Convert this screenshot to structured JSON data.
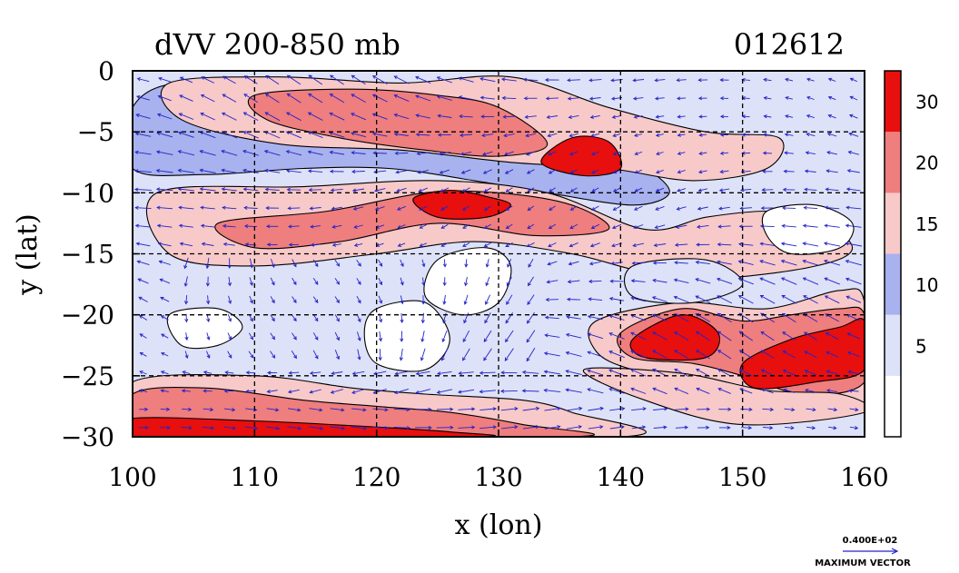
{
  "chart_data": {
    "type": "heatmap",
    "title": "dVV 200-850 mb",
    "date_label": "012612",
    "xlabel": "x (lon)",
    "ylabel": "y (lat)",
    "xlim": [
      100,
      160
    ],
    "ylim": [
      -30,
      0
    ],
    "x_ticks": [
      100,
      110,
      120,
      130,
      140,
      150,
      160
    ],
    "y_ticks": [
      0,
      -5,
      -10,
      -15,
      -20,
      -25,
      -30
    ],
    "grid": true,
    "colorbar": {
      "placement": "right",
      "levels": [
        0,
        5,
        10,
        15,
        20,
        30,
        40
      ],
      "tick_labels": [
        "5",
        "10",
        "15",
        "20",
        "30"
      ],
      "tick_values": [
        5,
        10,
        15,
        20,
        30
      ],
      "colors": [
        "#ffffff",
        "#dde2f8",
        "#a8b2ee",
        "#f7c9c9",
        "#ef7e7e",
        "#e80f0f"
      ]
    },
    "vector_legend": {
      "value_label": "0.400E+02",
      "caption": "MAXIMUM VECTOR",
      "arrow_color": "#2323c8"
    },
    "regions": [
      {
        "level": 10,
        "points": [
          [
            100,
            -3
          ],
          [
            104,
            -1
          ],
          [
            112,
            -2.5
          ],
          [
            120,
            -1.5
          ],
          [
            126,
            -3
          ],
          [
            130,
            -2
          ],
          [
            134,
            -5
          ],
          [
            138,
            -7
          ],
          [
            142,
            -8
          ],
          [
            144,
            -10
          ],
          [
            141,
            -11
          ],
          [
            134,
            -10
          ],
          [
            128,
            -9
          ],
          [
            121,
            -8
          ],
          [
            114,
            -8
          ],
          [
            106,
            -8.5
          ],
          [
            100,
            -8
          ]
        ]
      },
      {
        "level": 15,
        "points": [
          [
            103,
            -1
          ],
          [
            112,
            -0.5
          ],
          [
            122,
            -1
          ],
          [
            131,
            -0.5
          ],
          [
            139,
            -3
          ],
          [
            147,
            -5
          ],
          [
            153,
            -5.5
          ],
          [
            152,
            -8
          ],
          [
            146,
            -9
          ],
          [
            139,
            -8
          ],
          [
            131,
            -7.5
          ],
          [
            122,
            -6.5
          ],
          [
            112,
            -6
          ],
          [
            104,
            -4
          ]
        ]
      },
      {
        "level": 15,
        "points": [
          [
            102,
            -10
          ],
          [
            114,
            -9.5
          ],
          [
            125,
            -9
          ],
          [
            134,
            -10
          ],
          [
            142,
            -13
          ],
          [
            147,
            -12
          ],
          [
            152,
            -11.5
          ],
          [
            156,
            -12
          ],
          [
            159,
            -14.5
          ],
          [
            156,
            -16
          ],
          [
            148,
            -17
          ],
          [
            142,
            -16.5
          ],
          [
            136,
            -15
          ],
          [
            128,
            -14
          ],
          [
            120,
            -15
          ],
          [
            110,
            -16
          ],
          [
            103,
            -15
          ]
        ]
      },
      {
        "level": 20,
        "points": [
          [
            107,
            -12.5
          ],
          [
            116,
            -11.5
          ],
          [
            124,
            -10
          ],
          [
            130,
            -10
          ],
          [
            136,
            -11
          ],
          [
            139,
            -13
          ],
          [
            133,
            -13.5
          ],
          [
            125,
            -12.5
          ],
          [
            117,
            -14
          ],
          [
            110,
            -14.5
          ]
        ]
      },
      {
        "level": 20,
        "points": [
          [
            110,
            -2
          ],
          [
            118,
            -1.5
          ],
          [
            125,
            -2
          ],
          [
            130,
            -3
          ],
          [
            134,
            -6
          ],
          [
            130,
            -7
          ],
          [
            124,
            -6.5
          ],
          [
            117,
            -5.5
          ],
          [
            111,
            -4
          ]
        ]
      },
      {
        "level": 30,
        "points": [
          [
            123,
            -10.5
          ],
          [
            126,
            -9.8
          ],
          [
            129,
            -10.3
          ],
          [
            131,
            -11
          ],
          [
            129,
            -12
          ],
          [
            125,
            -12
          ]
        ]
      },
      {
        "level": 30,
        "points": [
          [
            133.5,
            -7.5
          ],
          [
            136,
            -5.5
          ],
          [
            139,
            -5.8
          ],
          [
            140,
            -8
          ],
          [
            137,
            -8.6
          ]
        ]
      },
      {
        "level": 15,
        "points": [
          [
            138,
            -20.5
          ],
          [
            145,
            -19
          ],
          [
            152,
            -19.5
          ],
          [
            158,
            -18
          ],
          [
            160,
            -19
          ],
          [
            160,
            -27.5
          ],
          [
            153,
            -27
          ],
          [
            147,
            -25.5
          ],
          [
            141,
            -24.5
          ],
          [
            138,
            -23
          ]
        ]
      },
      {
        "level": 20,
        "points": [
          [
            140,
            -21.5
          ],
          [
            145,
            -19.5
          ],
          [
            150,
            -20.5
          ],
          [
            154,
            -20
          ],
          [
            158,
            -19.5
          ],
          [
            160,
            -20
          ],
          [
            160,
            -25.5
          ],
          [
            155,
            -26.5
          ],
          [
            150,
            -25
          ],
          [
            146,
            -24
          ],
          [
            141,
            -23.5
          ]
        ]
      },
      {
        "level": 30,
        "points": [
          [
            141,
            -22
          ],
          [
            145,
            -20
          ],
          [
            148,
            -21.5
          ],
          [
            147,
            -23.5
          ],
          [
            142,
            -23.5
          ]
        ]
      },
      {
        "level": 30,
        "points": [
          [
            150,
            -24
          ],
          [
            154,
            -22
          ],
          [
            158,
            -21
          ],
          [
            160,
            -20.5
          ],
          [
            160,
            -24.5
          ],
          [
            156,
            -25.5
          ],
          [
            151,
            -26
          ]
        ]
      },
      {
        "level": 0,
        "points": [
          [
            125,
            -15.5
          ],
          [
            129,
            -14.5
          ],
          [
            131,
            -16
          ],
          [
            130,
            -19
          ],
          [
            127,
            -20
          ],
          [
            124,
            -18.5
          ]
        ]
      },
      {
        "level": 0,
        "points": [
          [
            120,
            -19.5
          ],
          [
            124,
            -19
          ],
          [
            126,
            -22
          ],
          [
            124,
            -24.5
          ],
          [
            120,
            -24
          ],
          [
            119,
            -21.5
          ]
        ]
      },
      {
        "level": 0,
        "points": [
          [
            152,
            -11.5
          ],
          [
            156,
            -11
          ],
          [
            159,
            -12.5
          ],
          [
            158,
            -14.5
          ],
          [
            154,
            -15
          ],
          [
            152,
            -13.5
          ]
        ]
      },
      {
        "level": 0,
        "points": [
          [
            103,
            -20
          ],
          [
            107,
            -19.5
          ],
          [
            109,
            -21
          ],
          [
            107,
            -22.5
          ],
          [
            104,
            -22.5
          ]
        ]
      },
      {
        "level": 5,
        "points": [
          [
            141,
            -16
          ],
          [
            147,
            -15.5
          ],
          [
            150,
            -17.5
          ],
          [
            146,
            -19
          ],
          [
            141,
            -18.5
          ]
        ]
      },
      {
        "level": 15,
        "points": [
          [
            100,
            -25.5
          ],
          [
            110,
            -25
          ],
          [
            118,
            -26
          ],
          [
            124,
            -26.5
          ],
          [
            132,
            -27
          ],
          [
            136,
            -28
          ],
          [
            140,
            -30
          ],
          [
            100,
            -30
          ]
        ]
      },
      {
        "level": 20,
        "points": [
          [
            100,
            -26.5
          ],
          [
            106,
            -26
          ],
          [
            114,
            -27
          ],
          [
            120,
            -27.5
          ],
          [
            126,
            -28
          ],
          [
            132,
            -29
          ],
          [
            136,
            -30
          ],
          [
            100,
            -30
          ]
        ]
      },
      {
        "level": 30,
        "points": [
          [
            100,
            -28.5
          ],
          [
            110,
            -28.7
          ],
          [
            120,
            -29.2
          ],
          [
            126,
            -29.6
          ],
          [
            128,
            -30
          ],
          [
            100,
            -30
          ]
        ]
      },
      {
        "level": 15,
        "points": [
          [
            137,
            -24.5
          ],
          [
            145,
            -24.8
          ],
          [
            152,
            -26.2
          ],
          [
            158,
            -26.5
          ],
          [
            160,
            -28
          ],
          [
            150,
            -29
          ],
          [
            142,
            -27
          ]
        ]
      }
    ],
    "vector_field": {
      "nx": 34,
      "ny": 20
    }
  }
}
